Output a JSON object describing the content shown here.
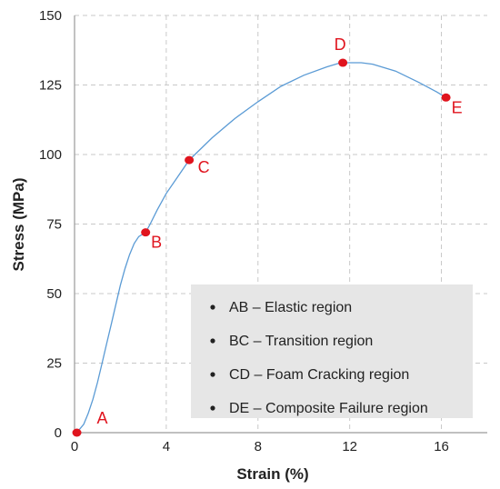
{
  "chart_data": {
    "type": "line",
    "xlabel": "Strain (%)",
    "ylabel": "Stress (MPa)",
    "xlim": [
      0,
      18
    ],
    "ylim": [
      0,
      150
    ],
    "x_ticks": [
      0,
      4,
      8,
      12,
      16
    ],
    "y_ticks": [
      0,
      25,
      50,
      75,
      100,
      125,
      150
    ],
    "grid": true,
    "line_color": "#5b9bd5",
    "point_color": "#e0141e",
    "series": [
      {
        "values": [
          [
            0.05,
            0
          ],
          [
            0.2,
            1
          ],
          [
            0.4,
            3
          ],
          [
            0.6,
            7
          ],
          [
            0.8,
            12
          ],
          [
            1.0,
            18
          ],
          [
            1.2,
            25
          ],
          [
            1.4,
            32
          ],
          [
            1.6,
            39
          ],
          [
            1.8,
            46
          ],
          [
            2.0,
            53
          ],
          [
            2.2,
            59
          ],
          [
            2.4,
            64
          ],
          [
            2.6,
            68
          ],
          [
            2.8,
            70.5
          ],
          [
            3.0,
            71.5
          ],
          [
            3.1,
            72
          ],
          [
            3.3,
            75
          ],
          [
            3.6,
            80
          ],
          [
            4.0,
            86
          ],
          [
            4.5,
            92
          ],
          [
            5.0,
            98
          ],
          [
            6.0,
            106
          ],
          [
            7.0,
            113
          ],
          [
            8.0,
            119
          ],
          [
            9.0,
            124.5
          ],
          [
            10.0,
            128.5
          ],
          [
            11.0,
            131.5
          ],
          [
            11.6,
            133
          ],
          [
            12.5,
            133
          ],
          [
            13.0,
            132.5
          ],
          [
            14.0,
            130
          ],
          [
            15.0,
            126
          ],
          [
            15.8,
            122.5
          ],
          [
            16.2,
            120.5
          ]
        ]
      }
    ],
    "points": [
      {
        "label": "A",
        "x": 0.1,
        "y": 0
      },
      {
        "label": "B",
        "x": 3.1,
        "y": 72
      },
      {
        "label": "C",
        "x": 5.0,
        "y": 98
      },
      {
        "label": "D",
        "x": 11.7,
        "y": 133
      },
      {
        "label": "E",
        "x": 16.2,
        "y": 120.5
      }
    ],
    "legend": {
      "placement": "bottom-right",
      "items": [
        "AB – Elastic region",
        "BC – Transition region",
        "CD – Foam Cracking region",
        "DE – Composite Failure region"
      ]
    }
  }
}
